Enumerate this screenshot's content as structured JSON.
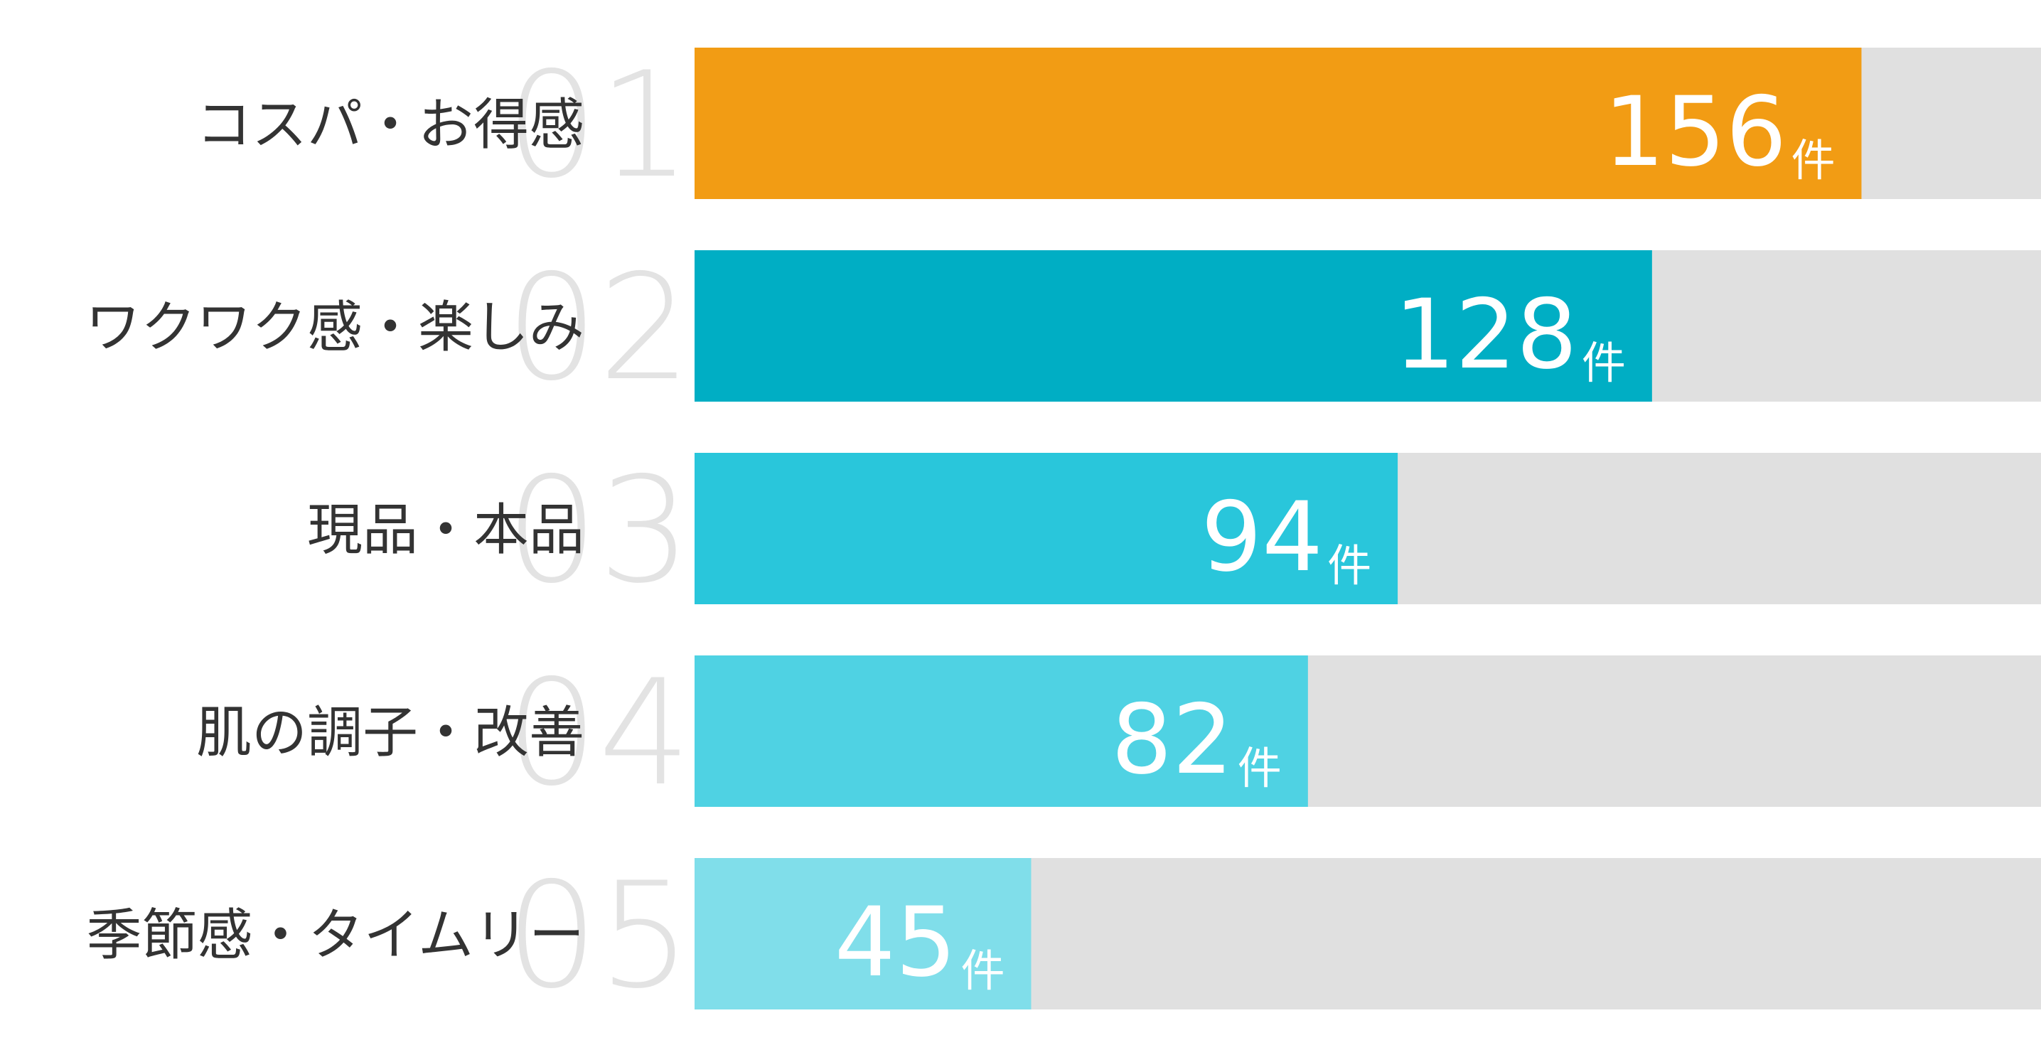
{
  "chart_data": {
    "type": "bar",
    "orientation": "horizontal",
    "categories": [
      "コスパ・お得感",
      "ワクワク感・楽しみ",
      "現品・本品",
      "肌の調子・改善",
      "季節感・タイムリー"
    ],
    "ranks": [
      "01",
      "02",
      "03",
      "04",
      "05"
    ],
    "values": [
      156,
      128,
      94,
      82,
      45
    ],
    "unit": "件",
    "colors": [
      "#f29c14",
      "#00aec4",
      "#29c6db",
      "#4fd2e3",
      "#80deea"
    ],
    "xlim": [
      0,
      180
    ]
  }
}
